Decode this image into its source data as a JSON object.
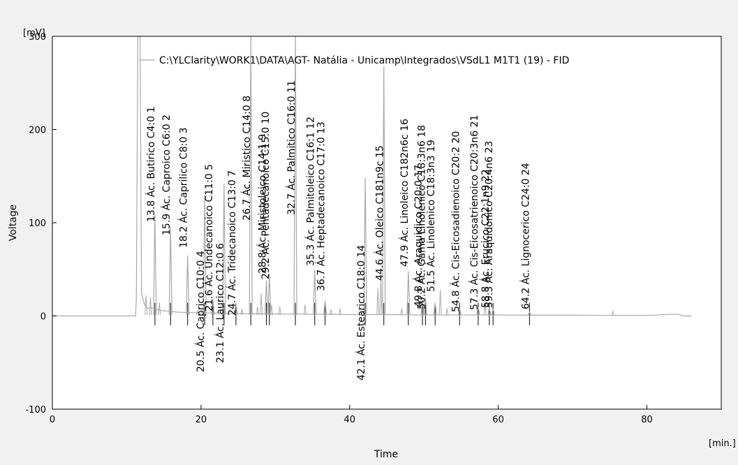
{
  "colors": {
    "background": "#f1f1f1",
    "plot_area": "#ffffff",
    "trace": "#a8a8a8",
    "peak_marker": "#000000"
  },
  "chart_data": {
    "type": "line",
    "title": "",
    "series_label": "C:\\YLClarity\\WORK1\\DATA\\AGT- Natália - Unicamp\\Integrados\\VSdL1 M1T1 (19) - FID",
    "xlabel": "Time",
    "ylabel": "Voltage",
    "x_unit": "[min.]",
    "y_unit": "[mV]",
    "xlim": [
      0,
      90
    ],
    "ylim": [
      -100,
      300
    ],
    "x_ticks": [
      0,
      20,
      40,
      60,
      80
    ],
    "y_ticks": [
      -100,
      0,
      100,
      200,
      300
    ],
    "grid": false,
    "trace": {
      "x": [
        0,
        11.2,
        11.3,
        11.5,
        11.8,
        12.0,
        12.4,
        12.8,
        13.2,
        14.5,
        15.5,
        17,
        19,
        22,
        26,
        30,
        34,
        40,
        45,
        50,
        55,
        60,
        65,
        70,
        75,
        80,
        84,
        85,
        86
      ],
      "y": [
        0,
        0,
        20,
        300,
        300,
        24,
        12,
        8,
        9,
        6,
        5,
        4,
        3.5,
        3,
        2.5,
        2,
        2,
        1.5,
        1.5,
        1,
        1,
        1,
        0.8,
        0.8,
        0.6,
        0.5,
        2,
        0,
        0
      ]
    },
    "minor_peaks": [
      {
        "rt": 12.6,
        "h": 22
      },
      {
        "rt": 13.2,
        "h": 20
      },
      {
        "rt": 14.4,
        "h": 14
      },
      {
        "rt": 19.5,
        "h": 6
      },
      {
        "rt": 25.5,
        "h": 8
      },
      {
        "rt": 27.6,
        "h": 10
      },
      {
        "rt": 28.1,
        "h": 24
      },
      {
        "rt": 29.5,
        "h": 12
      },
      {
        "rt": 30.6,
        "h": 10
      },
      {
        "rt": 34.0,
        "h": 12
      },
      {
        "rt": 37.5,
        "h": 7
      },
      {
        "rt": 38.7,
        "h": 8
      },
      {
        "rt": 43.8,
        "h": 30
      },
      {
        "rt": 44.2,
        "h": 40
      },
      {
        "rt": 47.0,
        "h": 8
      },
      {
        "rt": 52.2,
        "h": 28
      },
      {
        "rt": 53.1,
        "h": 8
      },
      {
        "rt": 58.2,
        "h": 12
      },
      {
        "rt": 75.4,
        "h": 5
      }
    ],
    "peaks": [
      {
        "num": "1",
        "label": "13.8 Ác. Butirico C4:0",
        "rt": 13.8,
        "h": 108
      },
      {
        "num": "2",
        "label": "15.9 Ác. Caproico C6:0",
        "rt": 15.9,
        "h": 96
      },
      {
        "num": "3",
        "label": "18.2 Ác. Caprilico C8:0",
        "rt": 18.2,
        "h": 65
      },
      {
        "num": "4",
        "label": "20.5 Ác. Caprico C10:0",
        "rt": 20.5,
        "h": 130
      },
      {
        "num": "5",
        "label": "21.6 Ác. Undecanoico C11:0",
        "rt": 21.6,
        "h": 18
      },
      {
        "num": "6",
        "label": "23.1 Ác. Laurico C12:0",
        "rt": 23.1,
        "h": 142
      },
      {
        "num": "7",
        "label": "24.7 Ác. Tridecanoico C13:0",
        "rt": 24.7,
        "h": 14
      },
      {
        "num": "8",
        "label": "26.7 Ác. Miristico C14:0",
        "rt": 26.7,
        "h": 300
      },
      {
        "num": "9",
        "label": "28.8 Ác. Miristoleico C14:1",
        "rt": 28.8,
        "h": 38
      },
      {
        "num": "10",
        "label": "29.2 Ác. Pentadecanoico C15:0",
        "rt": 29.2,
        "h": 45
      },
      {
        "num": "11",
        "label": "32.7 Ác. Palmitico C16:0",
        "rt": 32.7,
        "h": 300
      },
      {
        "num": "12",
        "label": "35.3 Ác. Palmitoleico C16:1",
        "rt": 35.3,
        "h": 50
      },
      {
        "num": "13",
        "label": "36.7 Ác. Heptadecanoico C17:0",
        "rt": 36.7,
        "h": 16
      },
      {
        "num": "14",
        "label": "42.1 Ác. Estearico C18:0",
        "rt": 42.1,
        "h": 148
      },
      {
        "num": "15",
        "label": "44.6 Ác. Oleico C181n9c",
        "rt": 44.6,
        "h": 268
      },
      {
        "num": "16",
        "label": "47.9 Ác. Linoleico C182n6c",
        "rt": 47.9,
        "h": 48
      },
      {
        "num": "17",
        "label": "49.8 Ác. Araquidico C20:0",
        "rt": 49.8,
        "h": 18
      },
      {
        "num": "18",
        "label": "50.2 Ác. Gama Linolenico C18:3n6",
        "rt": 50.2,
        "h": 20
      },
      {
        "num": "19",
        "label": "51.5 Ác. Linolenico C18:3n3",
        "rt": 51.5,
        "h": 14
      },
      {
        "num": "20",
        "label": "54.8 Ác. Cis-Eicosadienoico C20:2",
        "rt": 54.8,
        "h": 8
      },
      {
        "num": "21",
        "label": "57.3 Ác. Cis-Eicosatrienoico C20:3n6",
        "rt": 57.3,
        "h": 10
      },
      {
        "num": "22",
        "label": "58.8 Ác. Erucico C22:1n9",
        "rt": 58.8,
        "h": 9
      },
      {
        "num": "23",
        "label": "59.3 Ác. Araquidonico C20:4n6",
        "rt": 59.3,
        "h": 8
      },
      {
        "num": "24",
        "label": "64.2 Ác. Lignocerico C24:0",
        "rt": 64.2,
        "h": 4
      }
    ]
  }
}
